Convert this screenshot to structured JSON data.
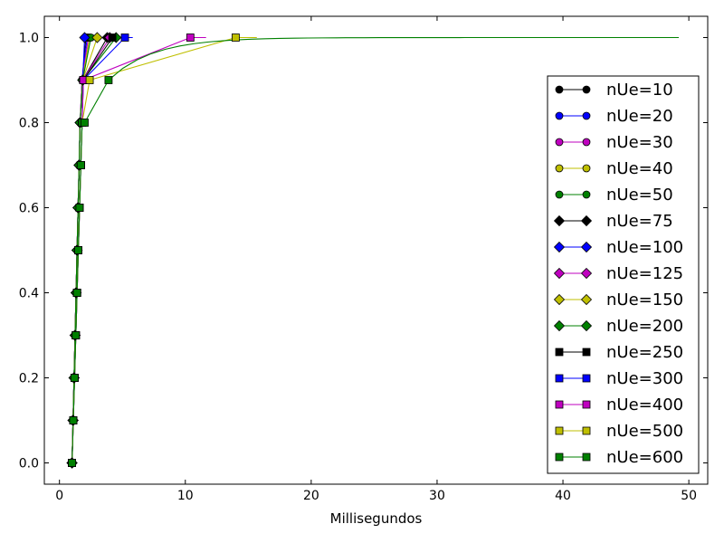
{
  "chart_data": {
    "type": "line",
    "title": "",
    "xlabel": "Millisegundos",
    "ylabel": "",
    "xlim": [
      -1.2,
      51.5
    ],
    "ylim": [
      -0.05,
      1.05
    ],
    "xticks": [
      0,
      10,
      20,
      30,
      40,
      50
    ],
    "yticks": [
      0.0,
      0.2,
      0.4,
      0.6,
      0.8,
      1.0
    ],
    "xtick_labels": [
      "0",
      "10",
      "20",
      "30",
      "40",
      "50"
    ],
    "ytick_labels": [
      "0.0",
      "0.2",
      "0.4",
      "0.6",
      "0.8",
      "1.0"
    ],
    "grid": false,
    "legend_position": "right",
    "series": [
      {
        "name": "nUe=10",
        "color": "#000000",
        "marker": "circle",
        "x": [
          1.0,
          1.08,
          1.16,
          1.24,
          1.32,
          1.4,
          1.48,
          1.56,
          1.64,
          1.8,
          2.1
        ],
        "y": [
          0.0,
          0.1,
          0.2,
          0.3,
          0.4,
          0.5,
          0.6,
          0.7,
          0.8,
          0.9,
          1.0
        ]
      },
      {
        "name": "nUe=20",
        "color": "#0000ff",
        "marker": "circle",
        "x": [
          1.0,
          1.08,
          1.16,
          1.24,
          1.32,
          1.4,
          1.48,
          1.56,
          1.64,
          1.8,
          2.2
        ],
        "y": [
          0.0,
          0.1,
          0.2,
          0.3,
          0.4,
          0.5,
          0.6,
          0.7,
          0.8,
          0.9,
          1.0
        ]
      },
      {
        "name": "nUe=30",
        "color": "#bf00bf",
        "marker": "circle",
        "x": [
          1.0,
          1.08,
          1.16,
          1.24,
          1.32,
          1.4,
          1.48,
          1.56,
          1.64,
          1.8,
          2.3
        ],
        "y": [
          0.0,
          0.1,
          0.2,
          0.3,
          0.4,
          0.5,
          0.6,
          0.7,
          0.8,
          0.9,
          1.0
        ]
      },
      {
        "name": "nUe=40",
        "color": "#bfbf00",
        "marker": "circle",
        "x": [
          1.0,
          1.08,
          1.16,
          1.24,
          1.32,
          1.4,
          1.48,
          1.56,
          1.64,
          1.82,
          2.4
        ],
        "y": [
          0.0,
          0.1,
          0.2,
          0.3,
          0.4,
          0.5,
          0.6,
          0.7,
          0.8,
          0.9,
          1.0
        ]
      },
      {
        "name": "nUe=50",
        "color": "#008000",
        "marker": "circle",
        "x": [
          1.0,
          1.08,
          1.16,
          1.24,
          1.32,
          1.4,
          1.48,
          1.56,
          1.64,
          1.85,
          2.5
        ],
        "y": [
          0.0,
          0.1,
          0.2,
          0.3,
          0.4,
          0.5,
          0.6,
          0.7,
          0.8,
          0.9,
          1.0
        ]
      },
      {
        "name": "nUe=75",
        "color": "#000000",
        "marker": "diamond",
        "x": [
          1.0,
          1.08,
          1.16,
          1.24,
          1.32,
          1.4,
          1.48,
          1.56,
          1.64,
          1.85,
          3.8
        ],
        "y": [
          0.0,
          0.1,
          0.2,
          0.3,
          0.4,
          0.5,
          0.6,
          0.7,
          0.8,
          0.9,
          1.0
        ]
      },
      {
        "name": "nUe=100",
        "color": "#0000ff",
        "marker": "diamond",
        "x": [
          1.0,
          1.08,
          1.16,
          1.24,
          1.32,
          1.4,
          1.48,
          1.56,
          1.64,
          1.85,
          2.0
        ],
        "y": [
          0.0,
          0.1,
          0.2,
          0.3,
          0.4,
          0.5,
          0.6,
          0.7,
          0.8,
          0.9,
          1.0
        ]
      },
      {
        "name": "nUe=125",
        "color": "#bf00bf",
        "marker": "diamond",
        "x": [
          1.0,
          1.08,
          1.16,
          1.24,
          1.32,
          1.4,
          1.48,
          1.56,
          1.64,
          1.85,
          4.0
        ],
        "y": [
          0.0,
          0.1,
          0.2,
          0.3,
          0.4,
          0.5,
          0.6,
          0.7,
          0.8,
          0.9,
          1.0
        ]
      },
      {
        "name": "nUe=150",
        "color": "#bfbf00",
        "marker": "diamond",
        "x": [
          1.0,
          1.08,
          1.16,
          1.24,
          1.32,
          1.4,
          1.48,
          1.56,
          1.64,
          1.85,
          3.0
        ],
        "y": [
          0.0,
          0.1,
          0.2,
          0.3,
          0.4,
          0.5,
          0.6,
          0.7,
          0.8,
          0.9,
          1.0
        ]
      },
      {
        "name": "nUe=200",
        "color": "#008000",
        "marker": "diamond",
        "x": [
          1.0,
          1.08,
          1.16,
          1.24,
          1.32,
          1.4,
          1.48,
          1.56,
          1.64,
          1.85,
          4.5
        ],
        "y": [
          0.0,
          0.1,
          0.2,
          0.3,
          0.4,
          0.5,
          0.6,
          0.7,
          0.8,
          0.9,
          1.0
        ]
      },
      {
        "name": "nUe=250",
        "color": "#000000",
        "marker": "square",
        "x": [
          1.0,
          1.1,
          1.2,
          1.3,
          1.4,
          1.5,
          1.6,
          1.7,
          1.8,
          1.9,
          4.2
        ],
        "y": [
          0.0,
          0.1,
          0.2,
          0.3,
          0.4,
          0.5,
          0.6,
          0.7,
          0.8,
          0.9,
          1.0
        ]
      },
      {
        "name": "nUe=300",
        "color": "#0000ff",
        "marker": "square",
        "x": [
          1.0,
          1.1,
          1.2,
          1.3,
          1.4,
          1.5,
          1.6,
          1.7,
          1.8,
          1.9,
          5.2
        ],
        "y": [
          0.0,
          0.1,
          0.2,
          0.3,
          0.4,
          0.5,
          0.6,
          0.7,
          0.8,
          0.9,
          1.0
        ]
      },
      {
        "name": "nUe=400",
        "color": "#bf00bf",
        "marker": "square",
        "x": [
          1.0,
          1.1,
          1.2,
          1.3,
          1.4,
          1.5,
          1.6,
          1.7,
          1.8,
          1.9,
          10.4
        ],
        "y": [
          0.0,
          0.1,
          0.2,
          0.3,
          0.4,
          0.5,
          0.6,
          0.7,
          0.8,
          0.9,
          1.0
        ]
      },
      {
        "name": "nUe=500",
        "color": "#bfbf00",
        "marker": "square",
        "x": [
          1.0,
          1.1,
          1.2,
          1.3,
          1.4,
          1.5,
          1.6,
          1.7,
          1.8,
          2.4,
          14.0
        ],
        "y": [
          0.0,
          0.1,
          0.2,
          0.3,
          0.4,
          0.5,
          0.6,
          0.7,
          0.8,
          0.9,
          1.0
        ]
      },
      {
        "name": "nUe=600",
        "color": "#008000",
        "marker": "square",
        "x": [
          1.0,
          1.1,
          1.2,
          1.3,
          1.4,
          1.5,
          1.6,
          1.7,
          1.8,
          2.0,
          3.9
        ],
        "y": [
          0.0,
          0.1,
          0.2,
          0.3,
          0.4,
          0.5,
          0.6,
          0.7,
          0.8,
          0.8,
          0.9
        ]
      }
    ]
  }
}
